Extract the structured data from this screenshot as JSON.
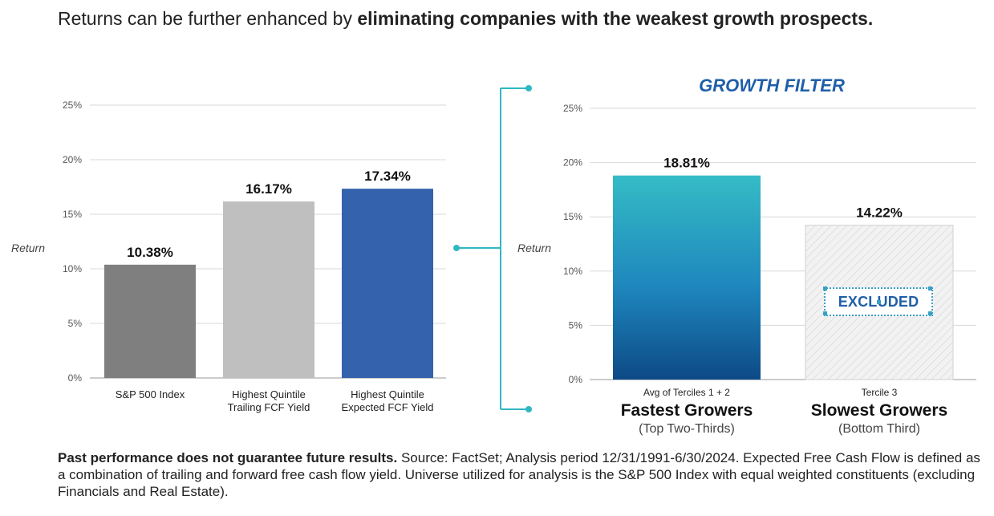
{
  "headline": {
    "normal": "Returns can be further enhanced by ",
    "bold": "eliminating companies with the weakest growth prospects."
  },
  "chart_data": [
    {
      "type": "bar",
      "ylabel": "Return",
      "ylim": [
        0,
        25
      ],
      "yticks": [
        "0%",
        "5%",
        "10%",
        "15%",
        "20%",
        "25%"
      ],
      "grid": true,
      "categories": [
        "S&P 500 Index",
        "Highest Quintile Trailing FCF Yield",
        "Highest Quintile Expected FCF Yield"
      ],
      "category_lines": [
        [
          "S&P 500 Index"
        ],
        [
          "Highest Quintile",
          "Trailing FCF Yield"
        ],
        [
          "Highest Quintile",
          "Expected FCF Yield"
        ]
      ],
      "values": [
        10.38,
        16.17,
        17.34
      ],
      "value_labels": [
        "10.38%",
        "16.17%",
        "17.34%"
      ],
      "colors": [
        "#7f7f7f",
        "#bfbfbf",
        "#3462ad"
      ]
    },
    {
      "type": "bar",
      "title": "GROWTH FILTER",
      "ylabel": "Return",
      "ylim": [
        0,
        25
      ],
      "yticks": [
        "0%",
        "5%",
        "10%",
        "15%",
        "20%",
        "25%"
      ],
      "grid": true,
      "categories": [
        "Fastest Growers",
        "Slowest Growers"
      ],
      "category_small": [
        "Avg of Terciles 1 + 2",
        "Tercile 3"
      ],
      "category_sub": [
        "(Top Two-Thirds)",
        "(Bottom Third)"
      ],
      "values": [
        18.81,
        14.22
      ],
      "value_labels": [
        "18.81%",
        "14.22%"
      ],
      "colors": [
        "#2fb8c4",
        "#e9e9e9"
      ],
      "annotation": "EXCLUDED"
    }
  ],
  "footnote": {
    "bold": "Past performance does not guarantee future results.",
    "normal": " Source: FactSet; Analysis period 12/31/1991-6/30/2024. Expected Free Cash Flow is defined as a combination of trailing and forward free cash flow yield. Universe utilized for analysis is the S&P 500 Index with equal weighted constituents (excluding Financials and Real Estate)."
  },
  "colors": {
    "connector": "#2fb8c4",
    "title": "#1f5fa8",
    "gradient_top": "#35bcc6",
    "gradient_bottom": "#0d4a86"
  }
}
